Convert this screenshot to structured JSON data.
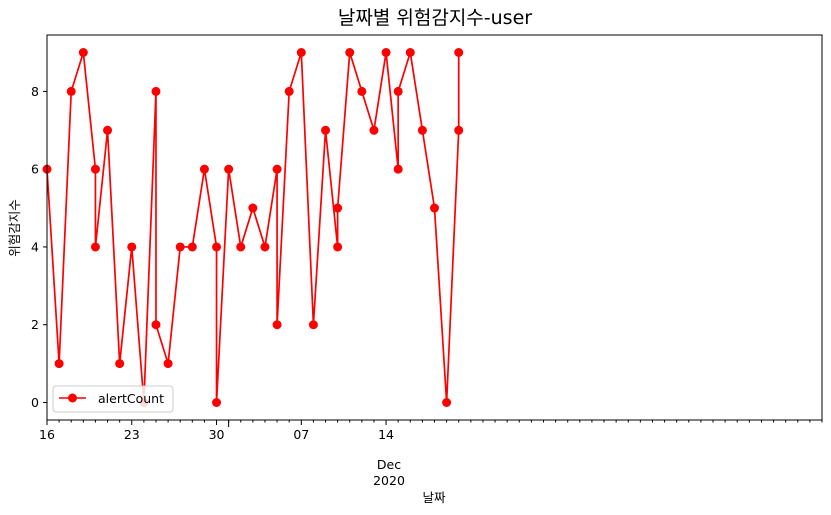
{
  "chart_data": {
    "type": "line",
    "title": "날짜별 위험감지수-user",
    "xlabel": "날짜",
    "ylabel": "위험감지수",
    "xlim": [
      "2020-11-16",
      "2021-01-19"
    ],
    "ylim": [
      -0.45,
      9.45
    ],
    "yticks": [
      0,
      2,
      4,
      6,
      8
    ],
    "xticks": [
      {
        "date": "2020-11-16",
        "label": "16"
      },
      {
        "date": "2020-11-23",
        "label": "23"
      },
      {
        "date": "2020-11-30",
        "label": "30"
      },
      {
        "date": "2020-12-07",
        "label": "07"
      },
      {
        "date": "2020-12-14",
        "label": "14"
      }
    ],
    "month_label": "Dec",
    "year_label": "2020",
    "legend": {
      "position": "lower-left",
      "entries": [
        "alertCount"
      ]
    },
    "grid": false,
    "series": [
      {
        "name": "alertCount",
        "color": "#ff0000",
        "points": [
          [
            "2020-11-16",
            6
          ],
          [
            "2020-11-17",
            1
          ],
          [
            "2020-11-18",
            8
          ],
          [
            "2020-11-19",
            9
          ],
          [
            "2020-11-20",
            6
          ],
          [
            "2020-11-20",
            4
          ],
          [
            "2020-11-21",
            7
          ],
          [
            "2020-11-22",
            1
          ],
          [
            "2020-11-23",
            4
          ],
          [
            "2020-11-24",
            0
          ],
          [
            "2020-11-25",
            8
          ],
          [
            "2020-11-25",
            2
          ],
          [
            "2020-11-26",
            1
          ],
          [
            "2020-11-27",
            4
          ],
          [
            "2020-11-28",
            4
          ],
          [
            "2020-11-29",
            6
          ],
          [
            "2020-11-30",
            4
          ],
          [
            "2020-11-30",
            0
          ],
          [
            "2020-12-01",
            6
          ],
          [
            "2020-12-02",
            4
          ],
          [
            "2020-12-03",
            5
          ],
          [
            "2020-12-04",
            4
          ],
          [
            "2020-12-05",
            6
          ],
          [
            "2020-12-05",
            2
          ],
          [
            "2020-12-06",
            8
          ],
          [
            "2020-12-07",
            9
          ],
          [
            "2020-12-08",
            2
          ],
          [
            "2020-12-09",
            7
          ],
          [
            "2020-12-10",
            4
          ],
          [
            "2020-12-10",
            5
          ],
          [
            "2020-12-11",
            9
          ],
          [
            "2020-12-12",
            8
          ],
          [
            "2020-12-13",
            7
          ],
          [
            "2020-12-14",
            9
          ],
          [
            "2020-12-15",
            6
          ],
          [
            "2020-12-15",
            8
          ],
          [
            "2020-12-16",
            9
          ],
          [
            "2020-12-17",
            7
          ],
          [
            "2020-12-18",
            5
          ],
          [
            "2020-12-19",
            0
          ],
          [
            "2020-12-20",
            7
          ],
          [
            "2020-12-20",
            9
          ]
        ]
      }
    ]
  }
}
